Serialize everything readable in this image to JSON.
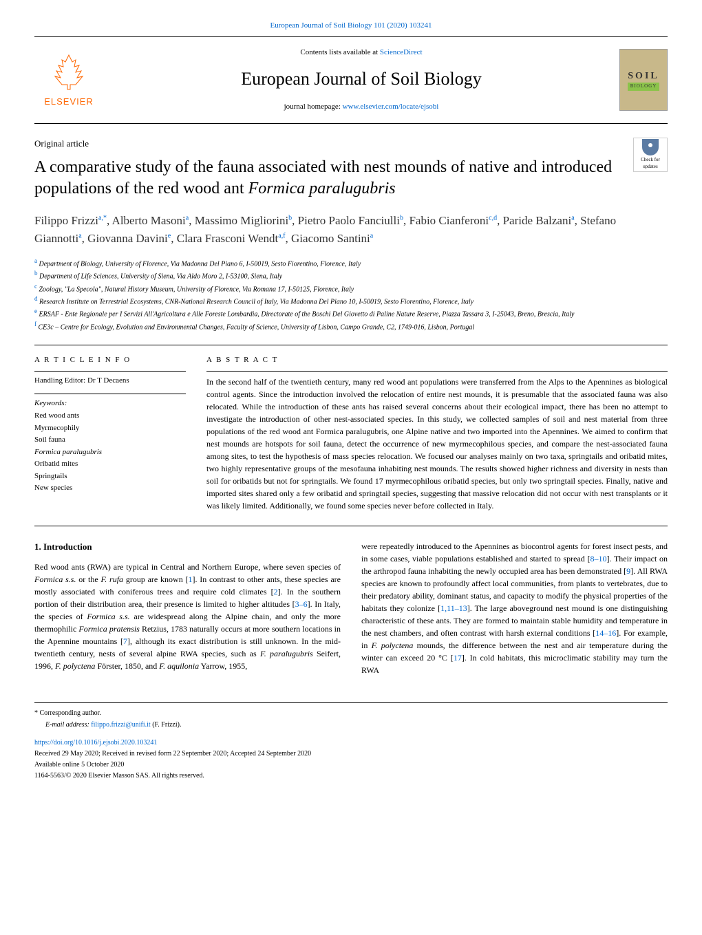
{
  "header": {
    "top_link_text": "European Journal of Soil Biology 101 (2020) 103241",
    "contents_prefix": "Contents lists available at ",
    "contents_link": "ScienceDirect",
    "journal_name": "European Journal of Soil Biology",
    "homepage_prefix": "journal homepage: ",
    "homepage_link": "www.elsevier.com/locate/ejsobi",
    "elsevier_label": "ELSEVIER",
    "soil_label": "SOIL",
    "biology_label": "BIOLOGY"
  },
  "article": {
    "type": "Original article",
    "check_updates_label": "Check for updates",
    "title_part1": "A comparative study of the fauna associated with nest mounds of native and introduced populations of the red wood ant ",
    "title_italic": "Formica paralugubris",
    "authors_html": "Filippo Frizzi",
    "authors": [
      {
        "name": "Filippo Frizzi",
        "sup": "a,*"
      },
      {
        "name": "Alberto Masoni",
        "sup": "a"
      },
      {
        "name": "Massimo Migliorini",
        "sup": "b"
      },
      {
        "name": "Pietro Paolo Fanciulli",
        "sup": "b"
      },
      {
        "name": "Fabio Cianferoni",
        "sup": "c,d"
      },
      {
        "name": "Paride Balzani",
        "sup": "a"
      },
      {
        "name": "Stefano Giannotti",
        "sup": "a"
      },
      {
        "name": "Giovanna Davini",
        "sup": "e"
      },
      {
        "name": "Clara Frasconi Wendt",
        "sup": "a,f"
      },
      {
        "name": "Giacomo Santini",
        "sup": "a"
      }
    ],
    "affiliations": [
      {
        "sup": "a",
        "text": "Department of Biology, University of Florence, Via Madonna Del Piano 6, I-50019, Sesto Fiorentino, Florence, Italy"
      },
      {
        "sup": "b",
        "text": "Department of Life Sciences, University of Siena, Via Aldo Moro 2, I-53100, Siena, Italy"
      },
      {
        "sup": "c",
        "text": "Zoology, \"La Specola\", Natural History Museum, University of Florence, Via Romana 17, I-50125, Florence, Italy"
      },
      {
        "sup": "d",
        "text": "Research Institute on Terrestrial Ecosystems, CNR-National Research Council of Italy, Via Madonna Del Piano 10, I-50019, Sesto Fiorentino, Florence, Italy"
      },
      {
        "sup": "e",
        "text": "ERSAF - Ente Regionale per I Servizi All'Agricoltura e Alle Foreste Lombardia, Directorate of the Boschi Del Giovetto di Paline Nature Reserve, Piazza Tassara 3, I-25043, Breno, Brescia, Italy"
      },
      {
        "sup": "f",
        "text": "CE3c – Centre for Ecology, Evolution and Environmental Changes, Faculty of Science, University of Lisbon, Campo Grande, C2, 1749-016, Lisbon, Portugal"
      }
    ]
  },
  "info": {
    "heading": "A R T I C L E  I N F O",
    "editor": "Handling Editor: Dr T Decaens",
    "keywords_label": "Keywords:",
    "keywords": [
      "Red wood ants",
      "Myrmecophily",
      "Soil fauna",
      "Formica paralugubris",
      "Oribatid mites",
      "Springtails",
      "New species"
    ]
  },
  "abstract": {
    "heading": "A B S T R A C T",
    "text": "In the second half of the twentieth century, many red wood ant populations were transferred from the Alps to the Apennines as biological control agents. Since the introduction involved the relocation of entire nest mounds, it is presumable that the associated fauna was also relocated. While the introduction of these ants has raised several concerns about their ecological impact, there has been no attempt to investigate the introduction of other nest-associated species. In this study, we collected samples of soil and nest material from three populations of the red wood ant Formica paralugubris, one Alpine native and two imported into the Apennines. We aimed to confirm that nest mounds are hotspots for soil fauna, detect the occurrence of new myrmecophilous species, and compare the nest-associated fauna among sites, to test the hypothesis of mass species relocation. We focused our analyses mainly on two taxa, springtails and oribatid mites, two highly representative groups of the mesofauna inhabiting nest mounds. The results showed higher richness and diversity in nests than soil for oribatids but not for springtails. We found 17 myrmecophilous oribatid species, but only two springtail species. Finally, native and imported sites shared only a few oribatid and springtail species, suggesting that massive relocation did not occur with nest transplants or it was likely limited. Additionally, we found some species never before collected in Italy."
  },
  "introduction": {
    "heading": "1.  Introduction",
    "col1_p1": "Red wood ants (RWA) are typical in Central and Northern Europe, where seven species of Formica s.s. or the F. rufa group are known [1]. In contrast to other ants, these species are mostly associated with coniferous trees and require cold climates [2]. In the southern portion of their distribution area, their presence is limited to higher altitudes [3–6]. In Italy, the species of Formica s.s. are widespread along the Alpine chain, and only the more thermophilic Formica pratensis Retzius, 1783 naturally occurs at more southern locations in the Apennine mountains [7], although its exact distribution is still unknown. In the mid-twentieth century, nests of several alpine RWA species, such as F. paralugubris Seifert, 1996, F. polyctena Förster, 1850, and F. aquilonia Yarrow, 1955,",
    "col2_p1": "were repeatedly introduced to the Apennines as biocontrol agents for forest insect pests, and in some cases, viable populations established and started to spread [8–10]. Their impact on the arthropod fauna inhabiting the newly occupied area has been demonstrated [9]. All RWA species are known to profoundly affect local communities, from plants to vertebrates, due to their predatory ability, dominant status, and capacity to modify the physical properties of the habitats they colonize [1,11–13]. The large aboveground nest mound is one distinguishing characteristic of these ants. They are formed to maintain stable humidity and temperature in the nest chambers, and often contrast with harsh external conditions [14–16]. For example, in F. polyctena mounds, the difference between the nest and air temperature during the winter can exceed 20 °C [17]. In cold habitats, this microclimatic stability may turn the RWA"
  },
  "footer": {
    "corresponding": "* Corresponding author.",
    "email_prefix": "E-mail address: ",
    "email": "filippo.frizzi@unifi.it",
    "email_suffix": " (F. Frizzi).",
    "doi": "https://doi.org/10.1016/j.ejsobi.2020.103241",
    "received": "Received 29 May 2020; Received in revised form 22 September 2020; Accepted 24 September 2020",
    "available": "Available online 5 October 2020",
    "copyright": "1164-5563/© 2020 Elsevier Masson SAS. All rights reserved."
  },
  "colors": {
    "link": "#0066cc",
    "elsevier_orange": "#ff6600",
    "soil_bg": "#c8b88a",
    "biology_bg": "#8bc34a"
  }
}
